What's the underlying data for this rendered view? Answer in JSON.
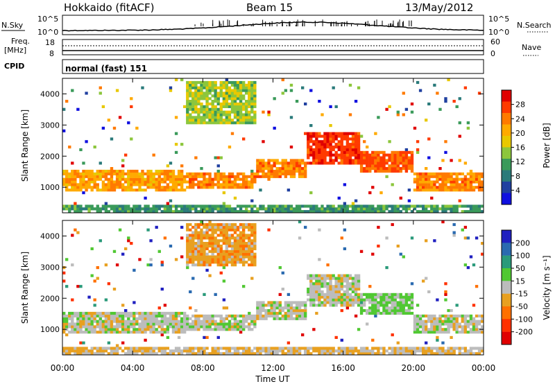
{
  "header": {
    "station": "Hokkaido (fitACF)",
    "beam": "Beam 15",
    "date": "13/May/2012"
  },
  "noise_panel": {
    "left_label": "N.Sky",
    "left_ticks": [
      "10^5",
      "10^0"
    ],
    "right_ticks": [
      "10^5",
      "10^0"
    ],
    "right_label": "N.Search",
    "right_legend_style": "dotted"
  },
  "freq_panel": {
    "left_label_1": "Freq.",
    "left_label_2": "[MHz]",
    "left_ticks": [
      "18",
      "8"
    ],
    "right_ticks": [
      "60",
      "0"
    ],
    "right_label": "Nave",
    "right_legend_style": "dotted"
  },
  "cpid_panel": {
    "label": "CPID",
    "value": "normal (fast) 151"
  },
  "power_panel": {
    "ylabel": "Slant Range [km]",
    "colorbar_label": "Power [dB]",
    "colorbar_ticks": [
      "28",
      "24",
      "20",
      "16",
      "12",
      "8",
      "4"
    ],
    "colorbar_colors": [
      "#e00000",
      "#ff3a00",
      "#ff7a00",
      "#ffaa00",
      "#e8c800",
      "#8cc63c",
      "#3a9a5a",
      "#2a7a7a",
      "#2040a0",
      "#1010e0"
    ]
  },
  "velocity_panel": {
    "ylabel": "Slant Range [km]",
    "colorbar_label": "Velocity [m s⁻¹]",
    "colorbar_ticks": [
      "200",
      "100",
      "50",
      "15",
      "-15",
      "-50",
      "-100",
      "-200"
    ],
    "colorbar_colors": [
      "#2020c0",
      "#2a6ab0",
      "#2a9a7a",
      "#50c832",
      "#bcbcbc",
      "#e8a020",
      "#ff7000",
      "#ff3000",
      "#e00000"
    ]
  },
  "x_axis": {
    "label": "Time UT",
    "ticks": [
      "00:00",
      "04:00",
      "08:00",
      "12:00",
      "16:00",
      "20:00",
      "00:00"
    ]
  },
  "chart_data": [
    {
      "type": "heatmap",
      "name": "",
      "x_range_hours": [
        0,
        24
      ],
      "y_range_km": [
        180,
        4500
      ],
      "y_ticks": [
        1000,
        2000,
        3000,
        4000
      ],
      "x_tick_hours": [
        0,
        4,
        8,
        12,
        16,
        20,
        24
      ],
      "value_label": "Power [dB]",
      "value_range": [
        0,
        30
      ],
      "bands": [
        {
          "t0": 0,
          "t1": 7,
          "r0": 900,
          "r1": 1550,
          "v": 20
        },
        {
          "t0": 7,
          "t1": 11,
          "r0": 950,
          "r1": 1500,
          "v": 22
        },
        {
          "t0": 11,
          "t1": 14,
          "r0": 1300,
          "r1": 1950,
          "v": 22
        },
        {
          "t0": 14,
          "t1": 17,
          "r0": 1700,
          "r1": 2800,
          "v": 26
        },
        {
          "t0": 17,
          "t1": 20,
          "r0": 1500,
          "r1": 2200,
          "v": 24
        },
        {
          "t0": 20,
          "t1": 24,
          "r0": 900,
          "r1": 1500,
          "v": 22
        },
        {
          "t0": 7,
          "t1": 11,
          "r0": 3000,
          "r1": 4400,
          "v": 14
        },
        {
          "t0": 0,
          "t1": 24,
          "r0": 200,
          "r1": 420,
          "v": 10
        }
      ]
    },
    {
      "type": "heatmap",
      "name": "",
      "x_range_hours": [
        0,
        24
      ],
      "y_range_km": [
        180,
        4500
      ],
      "y_ticks": [
        1000,
        2000,
        3000,
        4000
      ],
      "x_tick_hours": [
        0,
        4,
        8,
        12,
        16,
        20,
        24
      ],
      "value_label": "Velocity [m s⁻¹]",
      "value_range": [
        -250,
        250
      ],
      "bands": [
        {
          "t0": 0,
          "t1": 7,
          "r0": 900,
          "r1": 1550,
          "v": 0
        },
        {
          "t0": 7,
          "t1": 11,
          "r0": 950,
          "r1": 1500,
          "v": 0
        },
        {
          "t0": 11,
          "t1": 14,
          "r0": 1300,
          "r1": 1950,
          "v": 0
        },
        {
          "t0": 14,
          "t1": 17,
          "r0": 1700,
          "r1": 2800,
          "v": 0
        },
        {
          "t0": 17,
          "t1": 20,
          "r0": 1500,
          "r1": 2200,
          "v": 40
        },
        {
          "t0": 20,
          "t1": 24,
          "r0": 900,
          "r1": 1500,
          "v": 0
        },
        {
          "t0": 7,
          "t1": 11,
          "r0": 3000,
          "r1": 4400,
          "v": -60
        },
        {
          "t0": 0,
          "t1": 24,
          "r0": 200,
          "r1": 420,
          "v": -30
        }
      ]
    }
  ]
}
